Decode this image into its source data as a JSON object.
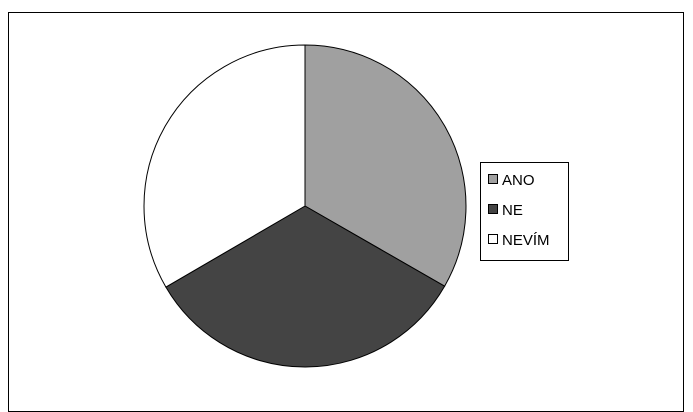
{
  "header": {
    "title_fragment": ""
  },
  "chart_data": {
    "type": "pie",
    "categories": [
      "ANO",
      "NE",
      "NEVÍM"
    ],
    "values": [
      33.3,
      33.3,
      33.4
    ],
    "colors": [
      "#a0a0a0",
      "#444444",
      "#ffffff"
    ],
    "legend_position": "right",
    "title": ""
  }
}
